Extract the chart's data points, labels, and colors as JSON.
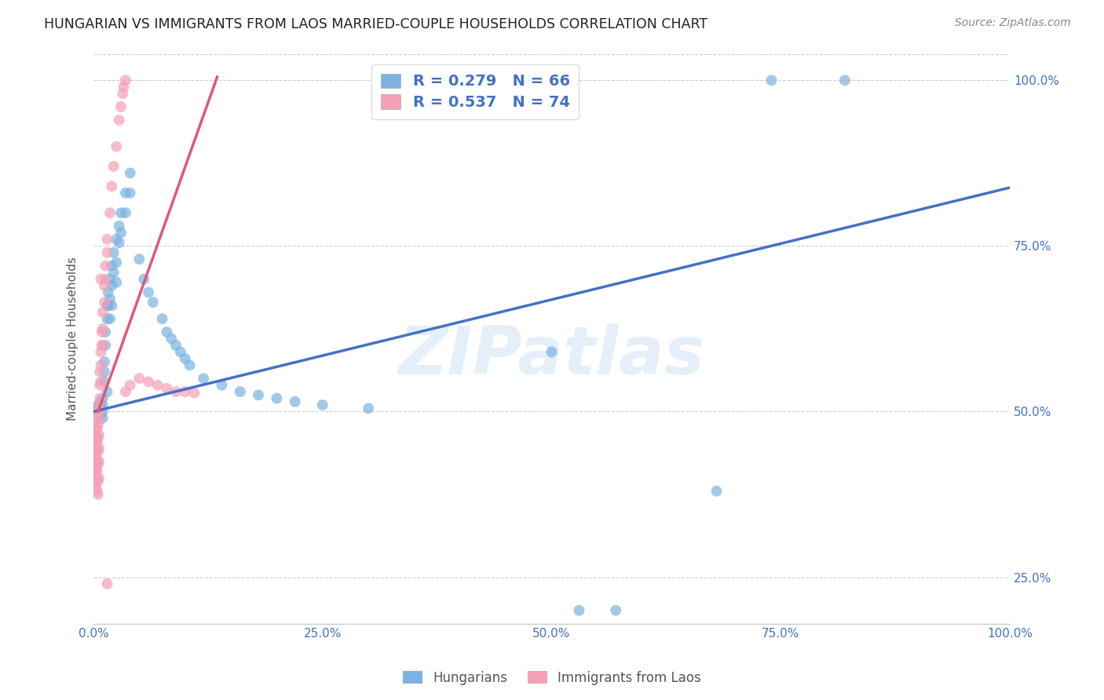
{
  "title": "HUNGARIAN VS IMMIGRANTS FROM LAOS MARRIED-COUPLE HOUSEHOLDS CORRELATION CHART",
  "source": "Source: ZipAtlas.com",
  "ylabel": "Married-couple Households",
  "xlabel": "",
  "xlim": [
    0.0,
    1.0
  ],
  "ylim": [
    0.18,
    1.04
  ],
  "xtick_labels": [
    "0.0%",
    "",
    "",
    "",
    "25.0%",
    "",
    "",
    "",
    "50.0%",
    "",
    "",
    "",
    "75.0%",
    "",
    "",
    "",
    "100.0%"
  ],
  "xtick_positions": [
    0.0,
    0.0625,
    0.125,
    0.1875,
    0.25,
    0.3125,
    0.375,
    0.4375,
    0.5,
    0.5625,
    0.625,
    0.6875,
    0.75,
    0.8125,
    0.875,
    0.9375,
    1.0
  ],
  "ytick_labels": [
    "25.0%",
    "50.0%",
    "75.0%",
    "100.0%"
  ],
  "ytick_positions": [
    0.25,
    0.5,
    0.75,
    1.0
  ],
  "blue_color": "#7ab3e0",
  "pink_color": "#f4a0b5",
  "blue_line_color": "#4472c4",
  "pink_line_color": "#e05878",
  "text_color": "#4472c4",
  "R_blue": 0.279,
  "N_blue": 66,
  "R_pink": 0.537,
  "N_pink": 74,
  "watermark": "ZIPatlas",
  "blue_line_x0": 0.0,
  "blue_line_y0": 0.5,
  "blue_line_x1": 1.0,
  "blue_line_y1": 0.838,
  "pink_line_x0": 0.005,
  "pink_line_y0": 0.5,
  "pink_line_x1": 0.135,
  "pink_line_y1": 1.005,
  "blue_scatter": [
    [
      0.005,
      0.505
    ],
    [
      0.005,
      0.51
    ],
    [
      0.005,
      0.498
    ],
    [
      0.007,
      0.507
    ],
    [
      0.007,
      0.502
    ],
    [
      0.007,
      0.495
    ],
    [
      0.008,
      0.515
    ],
    [
      0.008,
      0.505
    ],
    [
      0.008,
      0.495
    ],
    [
      0.01,
      0.52
    ],
    [
      0.01,
      0.51
    ],
    [
      0.01,
      0.5
    ],
    [
      0.01,
      0.49
    ],
    [
      0.012,
      0.575
    ],
    [
      0.012,
      0.56
    ],
    [
      0.012,
      0.545
    ],
    [
      0.013,
      0.62
    ],
    [
      0.013,
      0.6
    ],
    [
      0.015,
      0.66
    ],
    [
      0.015,
      0.64
    ],
    [
      0.015,
      0.53
    ],
    [
      0.016,
      0.68
    ],
    [
      0.016,
      0.66
    ],
    [
      0.018,
      0.7
    ],
    [
      0.018,
      0.67
    ],
    [
      0.018,
      0.64
    ],
    [
      0.02,
      0.72
    ],
    [
      0.02,
      0.69
    ],
    [
      0.02,
      0.66
    ],
    [
      0.022,
      0.74
    ],
    [
      0.022,
      0.71
    ],
    [
      0.025,
      0.76
    ],
    [
      0.025,
      0.725
    ],
    [
      0.025,
      0.695
    ],
    [
      0.028,
      0.78
    ],
    [
      0.028,
      0.755
    ],
    [
      0.03,
      0.8
    ],
    [
      0.03,
      0.77
    ],
    [
      0.035,
      0.83
    ],
    [
      0.035,
      0.8
    ],
    [
      0.04,
      0.86
    ],
    [
      0.04,
      0.83
    ],
    [
      0.05,
      0.73
    ],
    [
      0.055,
      0.7
    ],
    [
      0.06,
      0.68
    ],
    [
      0.065,
      0.665
    ],
    [
      0.075,
      0.64
    ],
    [
      0.08,
      0.62
    ],
    [
      0.085,
      0.61
    ],
    [
      0.09,
      0.6
    ],
    [
      0.095,
      0.59
    ],
    [
      0.1,
      0.58
    ],
    [
      0.105,
      0.57
    ],
    [
      0.12,
      0.55
    ],
    [
      0.14,
      0.54
    ],
    [
      0.16,
      0.53
    ],
    [
      0.18,
      0.525
    ],
    [
      0.2,
      0.52
    ],
    [
      0.22,
      0.515
    ],
    [
      0.25,
      0.51
    ],
    [
      0.3,
      0.505
    ],
    [
      0.5,
      0.59
    ],
    [
      0.53,
      0.2
    ],
    [
      0.57,
      0.2
    ],
    [
      0.68,
      0.38
    ],
    [
      0.74,
      1.0
    ],
    [
      0.82,
      1.0
    ]
  ],
  "pink_scatter": [
    [
      0.002,
      0.48
    ],
    [
      0.002,
      0.465
    ],
    [
      0.002,
      0.45
    ],
    [
      0.002,
      0.44
    ],
    [
      0.002,
      0.43
    ],
    [
      0.002,
      0.42
    ],
    [
      0.002,
      0.41
    ],
    [
      0.003,
      0.475
    ],
    [
      0.003,
      0.46
    ],
    [
      0.003,
      0.445
    ],
    [
      0.003,
      0.43
    ],
    [
      0.003,
      0.415
    ],
    [
      0.003,
      0.4
    ],
    [
      0.003,
      0.385
    ],
    [
      0.004,
      0.49
    ],
    [
      0.004,
      0.475
    ],
    [
      0.004,
      0.455
    ],
    [
      0.004,
      0.44
    ],
    [
      0.004,
      0.425
    ],
    [
      0.004,
      0.41
    ],
    [
      0.004,
      0.395
    ],
    [
      0.004,
      0.38
    ],
    [
      0.005,
      0.5
    ],
    [
      0.005,
      0.48
    ],
    [
      0.005,
      0.46
    ],
    [
      0.005,
      0.44
    ],
    [
      0.005,
      0.42
    ],
    [
      0.005,
      0.395
    ],
    [
      0.005,
      0.375
    ],
    [
      0.006,
      0.51
    ],
    [
      0.006,
      0.49
    ],
    [
      0.006,
      0.465
    ],
    [
      0.006,
      0.445
    ],
    [
      0.006,
      0.425
    ],
    [
      0.006,
      0.4
    ],
    [
      0.007,
      0.56
    ],
    [
      0.007,
      0.54
    ],
    [
      0.007,
      0.52
    ],
    [
      0.007,
      0.5
    ],
    [
      0.008,
      0.59
    ],
    [
      0.008,
      0.57
    ],
    [
      0.008,
      0.545
    ],
    [
      0.009,
      0.62
    ],
    [
      0.009,
      0.6
    ],
    [
      0.01,
      0.65
    ],
    [
      0.01,
      0.625
    ],
    [
      0.01,
      0.6
    ],
    [
      0.012,
      0.69
    ],
    [
      0.012,
      0.665
    ],
    [
      0.013,
      0.72
    ],
    [
      0.013,
      0.7
    ],
    [
      0.015,
      0.76
    ],
    [
      0.015,
      0.74
    ],
    [
      0.018,
      0.8
    ],
    [
      0.02,
      0.84
    ],
    [
      0.022,
      0.87
    ],
    [
      0.025,
      0.9
    ],
    [
      0.028,
      0.94
    ],
    [
      0.03,
      0.96
    ],
    [
      0.032,
      0.98
    ],
    [
      0.033,
      0.99
    ],
    [
      0.035,
      1.0
    ],
    [
      0.035,
      0.53
    ],
    [
      0.04,
      0.54
    ],
    [
      0.05,
      0.55
    ],
    [
      0.06,
      0.545
    ],
    [
      0.07,
      0.54
    ],
    [
      0.08,
      0.535
    ],
    [
      0.09,
      0.53
    ],
    [
      0.1,
      0.53
    ],
    [
      0.11,
      0.528
    ],
    [
      0.015,
      0.24
    ],
    [
      0.008,
      0.7
    ]
  ]
}
